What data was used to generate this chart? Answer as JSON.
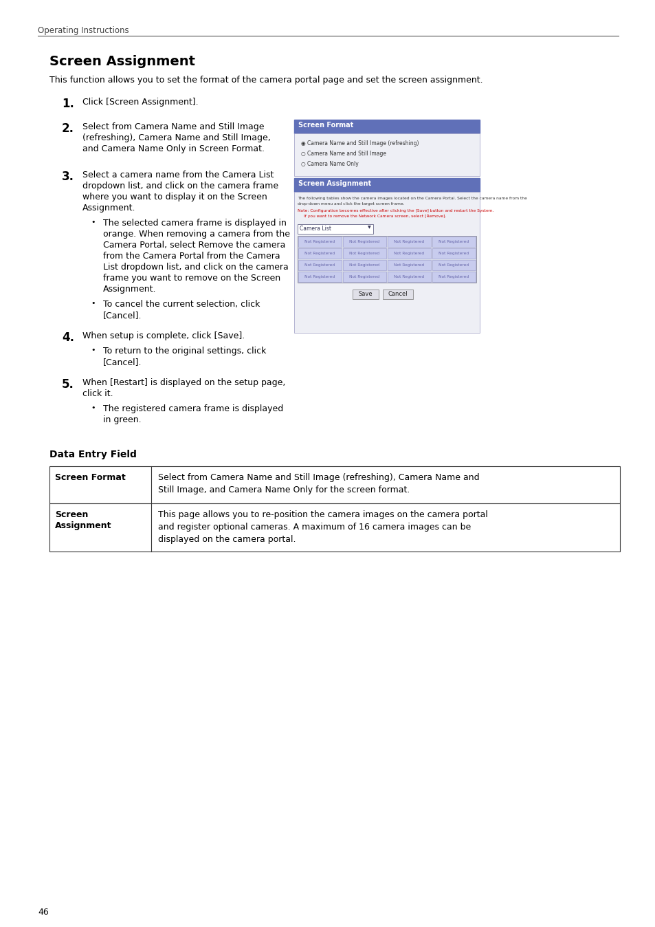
{
  "bg_color": "#ffffff",
  "header_text": "Operating Instructions",
  "title": "Screen Assignment",
  "intro": "This function allows you to set the format of the camera portal page and set the screen assignment.",
  "page_number": "46",
  "screenshot_header_color": "#6070b8",
  "screenshot_bg": "#eeeff5",
  "screenshot_cell_bg": "#c8ccee",
  "screenshot_cell_border": "#9999cc",
  "note_color": "#cc0000",
  "text_color": "#000000",
  "header_color": "#444444"
}
